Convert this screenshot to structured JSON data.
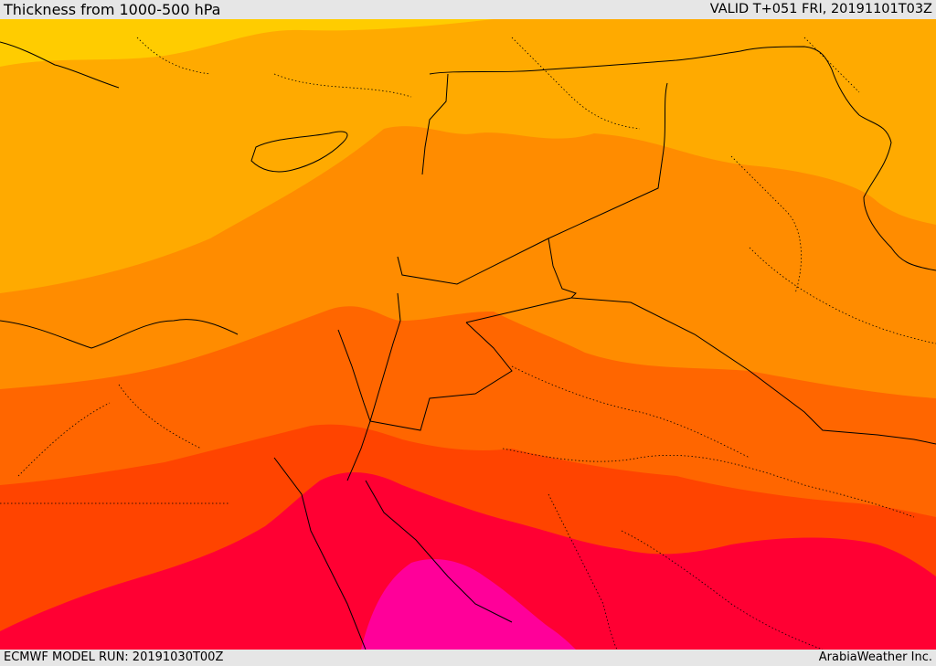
{
  "header": {
    "title": "Thickness from 1000-500 hPa",
    "valid": "VALID T+051 FRI, 20191101T03Z"
  },
  "footer": {
    "model_run": "ECMWF MODEL RUN: 20191030T00Z",
    "credit": "ArabiaWeather Inc."
  },
  "map": {
    "colors": {
      "band_1": "#ffcc00",
      "band_2": "#ffaa00",
      "band_3": "#ff8c00",
      "band_4": "#ff6600",
      "band_5": "#ff4400",
      "band_6": "#ff0033",
      "band_7": "#ff0099",
      "border": "#000000"
    }
  }
}
